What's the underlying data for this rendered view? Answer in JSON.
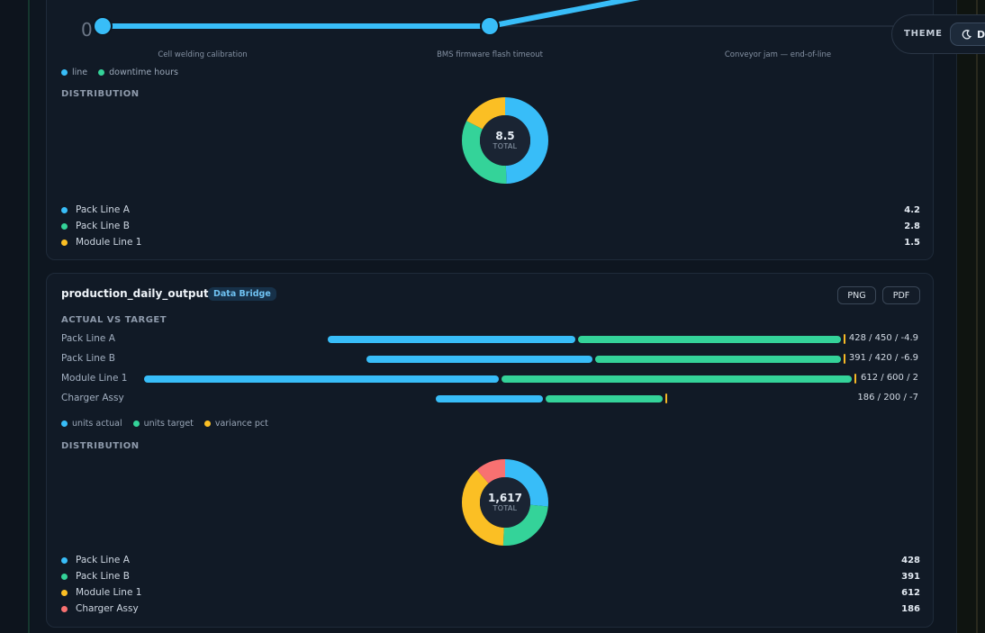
{
  "theme": {
    "label": "THEME",
    "toggle_text": "D"
  },
  "card1": {
    "timeline": {
      "start_marker": "0",
      "events": [
        "Cell welding calibration",
        "BMS firmware flash timeout",
        "Conveyor jam — end-of-line"
      ]
    },
    "legend": [
      {
        "label": "line",
        "color": "#38bdf8"
      },
      {
        "label": "downtime hours",
        "color": "#34d399"
      }
    ],
    "distribution_label": "Distribution",
    "donut": {
      "total_value": "8.5",
      "total_label": "TOTAL",
      "slices": [
        {
          "label": "Pack Line A",
          "value": 4.2,
          "display": "4.2",
          "color": "#38bdf8"
        },
        {
          "label": "Pack Line B",
          "value": 2.8,
          "display": "2.8",
          "color": "#34d399"
        },
        {
          "label": "Module Line 1",
          "value": 1.5,
          "display": "1.5",
          "color": "#fbbf24"
        }
      ]
    }
  },
  "card2": {
    "title": "production_daily_output",
    "badge": "Data Bridge",
    "buttons": {
      "png": "PNG",
      "pdf": "PDF"
    },
    "section_label": "Actual vs Target",
    "rows": [
      {
        "label": "Pack Line A",
        "actual": 428,
        "target": 450,
        "variance": -4.9,
        "value_text": "428 / 450 / -4.9"
      },
      {
        "label": "Pack Line B",
        "actual": 391,
        "target": 420,
        "variance": -6.9,
        "value_text": "391 / 420 / -6.9"
      },
      {
        "label": "Module Line 1",
        "actual": 612,
        "target": 600,
        "variance": 2,
        "value_text": "612 / 600 / 2"
      },
      {
        "label": "Charger Assy",
        "actual": 186,
        "target": 200,
        "variance": -7,
        "value_text": "186 / 200 / -7"
      }
    ],
    "legend": [
      {
        "label": "units actual",
        "color": "#38bdf8"
      },
      {
        "label": "units target",
        "color": "#34d399"
      },
      {
        "label": "variance pct",
        "color": "#fbbf24"
      }
    ],
    "distribution_label": "Distribution",
    "donut": {
      "total_value": "1,617",
      "total_label": "TOTAL",
      "slices": [
        {
          "label": "Pack Line A",
          "value": 428,
          "display": "428",
          "color": "#38bdf8"
        },
        {
          "label": "Pack Line B",
          "value": 391,
          "display": "391",
          "color": "#34d399"
        },
        {
          "label": "Module Line 1",
          "value": 612,
          "display": "612",
          "color": "#fbbf24"
        },
        {
          "label": "Charger Assy",
          "value": 186,
          "display": "186",
          "color": "#f87171"
        }
      ]
    }
  }
}
